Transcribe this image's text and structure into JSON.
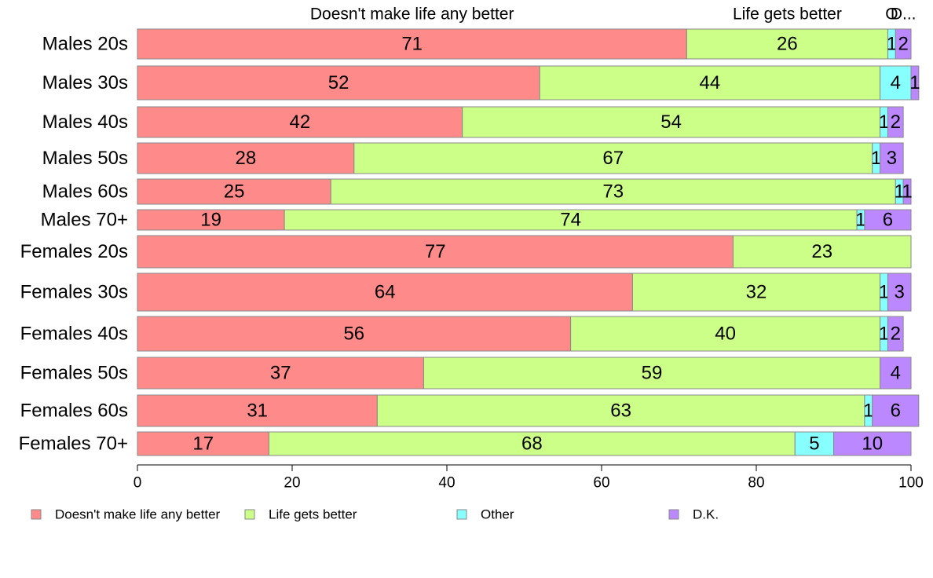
{
  "chart_data": {
    "type": "bar",
    "orientation": "horizontal",
    "stacked": true,
    "categories": [
      "Males 20s",
      "Males 30s",
      "Males 40s",
      "Males 50s",
      "Males 60s",
      "Males 70+",
      "Females 20s",
      "Females 30s",
      "Females 40s",
      "Females 50s",
      "Females 60s",
      "Females 70+"
    ],
    "series": [
      {
        "name": "Doesn't make life any better",
        "color": "#ff8a8a",
        "values": [
          71,
          52,
          42,
          28,
          25,
          19,
          77,
          64,
          56,
          37,
          31,
          17
        ]
      },
      {
        "name": "Life gets better",
        "color": "#ccff88",
        "values": [
          26,
          44,
          54,
          67,
          73,
          74,
          23,
          32,
          40,
          59,
          63,
          68
        ]
      },
      {
        "name": "Other",
        "color": "#88ffff",
        "values": [
          1,
          4,
          1,
          1,
          1,
          1,
          0,
          1,
          1,
          0,
          1,
          5
        ]
      },
      {
        "name": "D.K.",
        "color": "#bb88ff",
        "values": [
          2,
          1,
          2,
          3,
          1,
          6,
          0,
          3,
          2,
          4,
          6,
          10
        ]
      }
    ],
    "top_labels": [
      "Doesn't make life any better",
      "Life gets better",
      "O",
      "D..."
    ],
    "xlim": [
      0,
      100
    ],
    "xticks": [
      "0",
      "20",
      "40",
      "60",
      "80",
      "100"
    ],
    "legend": "bottom",
    "grid": false
  }
}
